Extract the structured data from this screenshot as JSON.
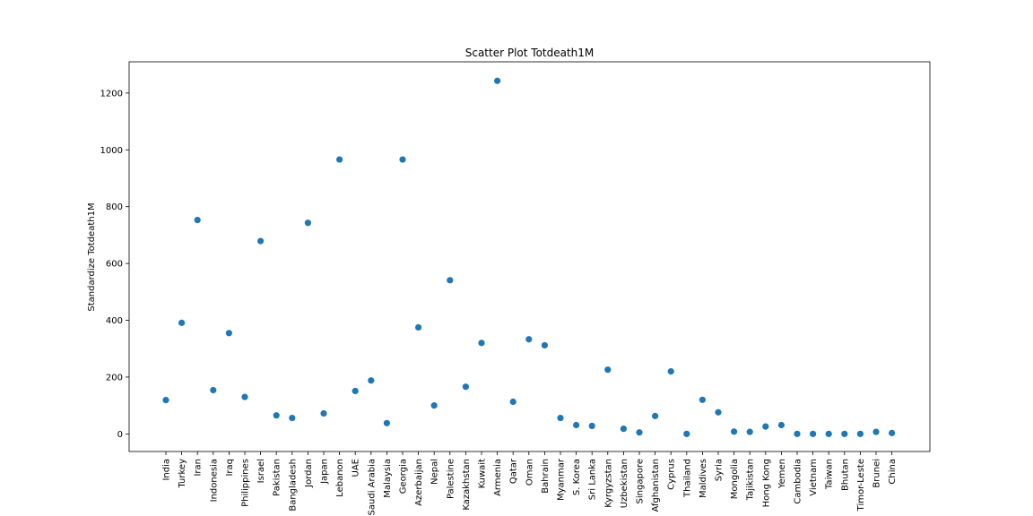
{
  "chart_data": {
    "type": "scatter",
    "title": "Scatter Plot Totdeath1M",
    "xlabel": "",
    "ylabel": "Standardize Totdeath1M",
    "ylim": [
      -62,
      1310
    ],
    "yticks": [
      0,
      200,
      400,
      600,
      800,
      1000,
      1200
    ],
    "grid": false,
    "marker_color": "#1f77b4",
    "categories": [
      "India",
      "Turkey",
      "Iran",
      "Indonesia",
      "Iraq",
      "Philippines",
      "Israel",
      "Pakistan",
      "Bangladesh",
      "Jordan",
      "Japan",
      "Lebanon",
      "UAE",
      "Saudi Arabia",
      "Malaysia",
      "Georgia",
      "Azerbaijan",
      "Nepal",
      "Palestine",
      "Kazakhstan",
      "Kuwait",
      "Armenia",
      "Qatar",
      "Oman",
      "Bahrain",
      "Myanmar",
      "S. Korea",
      "Sri Lanka",
      "Kyrgyzstan",
      "Uzbekistan",
      "Singapore",
      "Afghanistan",
      "Cyprus",
      "Thailand",
      "Maldives",
      "Syria",
      "Mongolia",
      "Tajikistan",
      "Hong Kong",
      "Yemen",
      "Cambodia",
      "Vietnam",
      "Taiwan",
      "Bhutan",
      "Timor-Leste",
      "Brunei",
      "China"
    ],
    "values": [
      119,
      391,
      753,
      154,
      355,
      130,
      679,
      65,
      56,
      743,
      72,
      966,
      151,
      188,
      38,
      966,
      375,
      100,
      541,
      166,
      320,
      1243,
      113,
      333,
      312,
      56,
      31,
      28,
      226,
      18,
      5,
      63,
      220,
      0,
      120,
      76,
      8,
      7,
      26,
      31,
      0,
      0,
      0,
      0,
      0,
      7,
      3
    ]
  }
}
